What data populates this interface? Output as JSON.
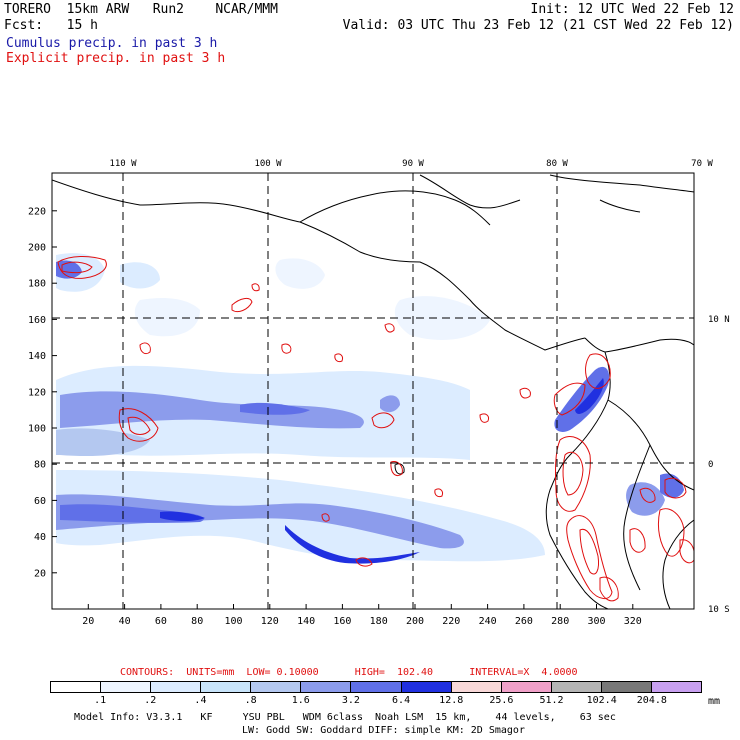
{
  "header": {
    "model": "TORERO  15km ARW   Run2    NCAR/MMM",
    "init": "Init: 12 UTC Wed 22 Feb 12",
    "fcst": "Fcst:   15 h",
    "valid": "Valid: 03 UTC Thu 23 Feb 12 (21 CST Wed 22 Feb 12)"
  },
  "legend_titles": {
    "cumulus": "Cumulus precip. in past 3 h",
    "explicit": "Explicit precip. in past 3 h"
  },
  "colors": {
    "cumulus_title": "#1a1aa8",
    "explicit_title": "#e01010",
    "contour": "#e01010",
    "grid": "#000000"
  },
  "map": {
    "lon_labels": [
      "110 W",
      "100 W",
      "90 W",
      "80 W",
      "70 W"
    ],
    "lat_labels": [
      "10 N",
      "0",
      "10 S"
    ],
    "x_ticks": [
      "20",
      "40",
      "60",
      "80",
      "100",
      "120",
      "140",
      "160",
      "180",
      "200",
      "220",
      "240",
      "260",
      "280",
      "300",
      "320"
    ],
    "y_ticks": [
      "20",
      "40",
      "60",
      "80",
      "100",
      "120",
      "140",
      "160",
      "180",
      "200",
      "220"
    ]
  },
  "contour_info": {
    "line": "CONTOURS:  UNITS=mm  LOW= 0.10000      HIGH=  102.40      INTERVAL=X  4.0000"
  },
  "colorbar": {
    "labels": [
      ".1",
      ".2",
      ".4",
      ".8",
      "1.6",
      "3.2",
      "6.4",
      "12.8",
      "25.6",
      "51.2",
      "102.4",
      "204.8"
    ],
    "unit": "mm",
    "colors": [
      "#ffffff",
      "#eef5ff",
      "#dcecff",
      "#c8e4fa",
      "#b4c8f0",
      "#8c9cec",
      "#6070e8",
      "#2030e0",
      "#f8d8d8",
      "#f0a0c8",
      "#b4b4b4",
      "#787878",
      "#c8a0f0"
    ]
  },
  "model_info": {
    "line1": "Model Info: V3.3.1   KF     YSU PBL   WDM 6class  Noah LSM  15 km,    44 levels,    63 sec",
    "line2": "LW: Godd SW: Goddard DIFF: simple KM: 2D Smagor"
  }
}
